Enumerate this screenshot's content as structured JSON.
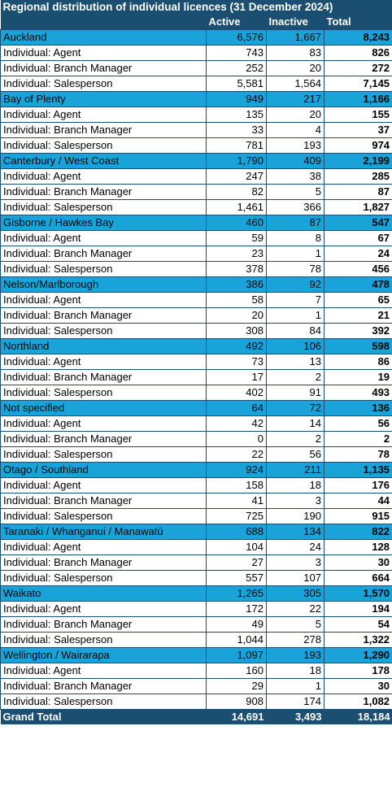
{
  "title": "Regional distribution of individual licences (31 December 2024)",
  "columns": [
    "",
    "Active",
    "Inactive",
    "Total"
  ],
  "regions": [
    {
      "name": "Auckland",
      "active": "6,576",
      "inactive": "1,667",
      "total": "8,243",
      "rows": [
        {
          "label": "Individual: Agent",
          "active": "743",
          "inactive": "83",
          "total": "826"
        },
        {
          "label": "Individual: Branch Manager",
          "active": "252",
          "inactive": "20",
          "total": "272"
        },
        {
          "label": "Individual: Salesperson",
          "active": "5,581",
          "inactive": "1,564",
          "total": "7,145"
        }
      ]
    },
    {
      "name": "Bay of Plenty",
      "active": "949",
      "inactive": "217",
      "total": "1,166",
      "rows": [
        {
          "label": "Individual: Agent",
          "active": "135",
          "inactive": "20",
          "total": "155"
        },
        {
          "label": "Individual: Branch Manager",
          "active": "33",
          "inactive": "4",
          "total": "37"
        },
        {
          "label": "Individual: Salesperson",
          "active": "781",
          "inactive": "193",
          "total": "974"
        }
      ]
    },
    {
      "name": "Canterbury / West Coast",
      "active": "1,790",
      "inactive": "409",
      "total": "2,199",
      "rows": [
        {
          "label": "Individual: Agent",
          "active": "247",
          "inactive": "38",
          "total": "285"
        },
        {
          "label": "Individual: Branch Manager",
          "active": "82",
          "inactive": "5",
          "total": "87"
        },
        {
          "label": "Individual: Salesperson",
          "active": "1,461",
          "inactive": "366",
          "total": "1,827"
        }
      ]
    },
    {
      "name": "Gisborne / Hawkes Bay",
      "active": "460",
      "inactive": "87",
      "total": "547",
      "rows": [
        {
          "label": "Individual: Agent",
          "active": "59",
          "inactive": "8",
          "total": "67"
        },
        {
          "label": "Individual: Branch Manager",
          "active": "23",
          "inactive": "1",
          "total": "24"
        },
        {
          "label": "Individual: Salesperson",
          "active": "378",
          "inactive": "78",
          "total": "456"
        }
      ]
    },
    {
      "name": "Nelson/Marlborough",
      "active": "386",
      "inactive": "92",
      "total": "478",
      "rows": [
        {
          "label": "Individual: Agent",
          "active": "58",
          "inactive": "7",
          "total": "65"
        },
        {
          "label": "Individual: Branch Manager",
          "active": "20",
          "inactive": "1",
          "total": "21"
        },
        {
          "label": "Individual: Salesperson",
          "active": "308",
          "inactive": "84",
          "total": "392"
        }
      ]
    },
    {
      "name": "Northland",
      "active": "492",
      "inactive": "106",
      "total": "598",
      "rows": [
        {
          "label": "Individual: Agent",
          "active": "73",
          "inactive": "13",
          "total": "86"
        },
        {
          "label": "Individual: Branch Manager",
          "active": "17",
          "inactive": "2",
          "total": "19"
        },
        {
          "label": "Individual: Salesperson",
          "active": "402",
          "inactive": "91",
          "total": "493"
        }
      ]
    },
    {
      "name": "Not specified",
      "active": "64",
      "inactive": "72",
      "total": "136",
      "rows": [
        {
          "label": "Individual: Agent",
          "active": "42",
          "inactive": "14",
          "total": "56"
        },
        {
          "label": "Individual: Branch Manager",
          "active": "0",
          "inactive": "2",
          "total": "2"
        },
        {
          "label": "Individual: Salesperson",
          "active": "22",
          "inactive": "56",
          "total": "78"
        }
      ]
    },
    {
      "name": "Otago / Southland",
      "active": "924",
      "inactive": "211",
      "total": "1,135",
      "rows": [
        {
          "label": "Individual: Agent",
          "active": "158",
          "inactive": "18",
          "total": "176"
        },
        {
          "label": "Individual: Branch Manager",
          "active": "41",
          "inactive": "3",
          "total": "44"
        },
        {
          "label": "Individual: Salesperson",
          "active": "725",
          "inactive": "190",
          "total": "915"
        }
      ]
    },
    {
      "name": "Taranaki / Whanganui / Manawatū",
      "active": "688",
      "inactive": "134",
      "total": "822",
      "rows": [
        {
          "label": "Individual: Agent",
          "active": "104",
          "inactive": "24",
          "total": "128"
        },
        {
          "label": "Individual: Branch Manager",
          "active": "27",
          "inactive": "3",
          "total": "30"
        },
        {
          "label": "Individual: Salesperson",
          "active": "557",
          "inactive": "107",
          "total": "664"
        }
      ]
    },
    {
      "name": "Waikato",
      "active": "1,265",
      "inactive": "305",
      "total": "1,570",
      "rows": [
        {
          "label": "Individual: Agent",
          "active": "172",
          "inactive": "22",
          "total": "194"
        },
        {
          "label": "Individual: Branch Manager",
          "active": "49",
          "inactive": "5",
          "total": "54"
        },
        {
          "label": "Individual: Salesperson",
          "active": "1,044",
          "inactive": "278",
          "total": "1,322"
        }
      ]
    },
    {
      "name": "Wellington / Wairarapa",
      "active": "1,097",
      "inactive": "193",
      "total": "1,290",
      "rows": [
        {
          "label": "Individual: Agent",
          "active": "160",
          "inactive": "18",
          "total": "178"
        },
        {
          "label": "Individual: Branch Manager",
          "active": "29",
          "inactive": "1",
          "total": "30"
        },
        {
          "label": "Individual: Salesperson",
          "active": "908",
          "inactive": "174",
          "total": "1,082"
        }
      ]
    }
  ],
  "grand_total": {
    "label": "Grand Total",
    "active": "14,691",
    "inactive": "3,493",
    "total": "18,184"
  },
  "colors": {
    "header": "#1b4f72",
    "region": "#1aa3d9",
    "header_text": "#ffffff"
  }
}
